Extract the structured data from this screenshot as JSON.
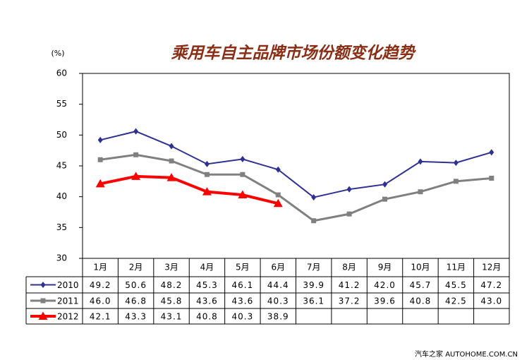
{
  "chart_data": {
    "type": "line",
    "title": "乘用车自主品牌市场份额变化趋势",
    "y_label": "(%)",
    "watermark": "汽车之家 AUTOHOME.COM.CN",
    "categories": [
      "1月",
      "2月",
      "3月",
      "4月",
      "5月",
      "6月",
      "7月",
      "8月",
      "9月",
      "10月",
      "11月",
      "12月"
    ],
    "series": [
      {
        "name": "2010",
        "color": "#2e3192",
        "marker": "diamond",
        "values": [
          49.2,
          50.6,
          48.2,
          45.3,
          46.1,
          44.4,
          39.9,
          41.2,
          42.0,
          45.7,
          45.5,
          47.2
        ],
        "value_labels": [
          "49.2",
          "50.6",
          "48.2",
          "45.3",
          "46.1",
          "44.4",
          "39.9",
          "41.2",
          "42.0",
          "45.7",
          "45.5",
          "47.2"
        ]
      },
      {
        "name": "2011",
        "color": "#808080",
        "marker": "square",
        "values": [
          46.0,
          46.8,
          45.8,
          43.6,
          43.6,
          40.3,
          36.1,
          37.2,
          39.6,
          40.8,
          42.5,
          43.0
        ],
        "value_labels": [
          "46.0",
          "46.8",
          "45.8",
          "43.6",
          "43.6",
          "40.3",
          "36.1",
          "37.2",
          "39.6",
          "40.8",
          "42.5",
          "43.0"
        ]
      },
      {
        "name": "2012",
        "color": "#ff0000",
        "marker": "triangle",
        "values": [
          42.1,
          43.3,
          43.1,
          40.8,
          40.3,
          38.9,
          null,
          null,
          null,
          null,
          null,
          null
        ],
        "value_labels": [
          "42.1",
          "43.3",
          "43.1",
          "40.8",
          "40.3",
          "38.9",
          null,
          null,
          null,
          null,
          null,
          null
        ]
      }
    ],
    "ylim": [
      30,
      60
    ],
    "yticks": [
      30,
      35,
      40,
      45,
      50,
      55,
      60
    ],
    "grid": false
  }
}
